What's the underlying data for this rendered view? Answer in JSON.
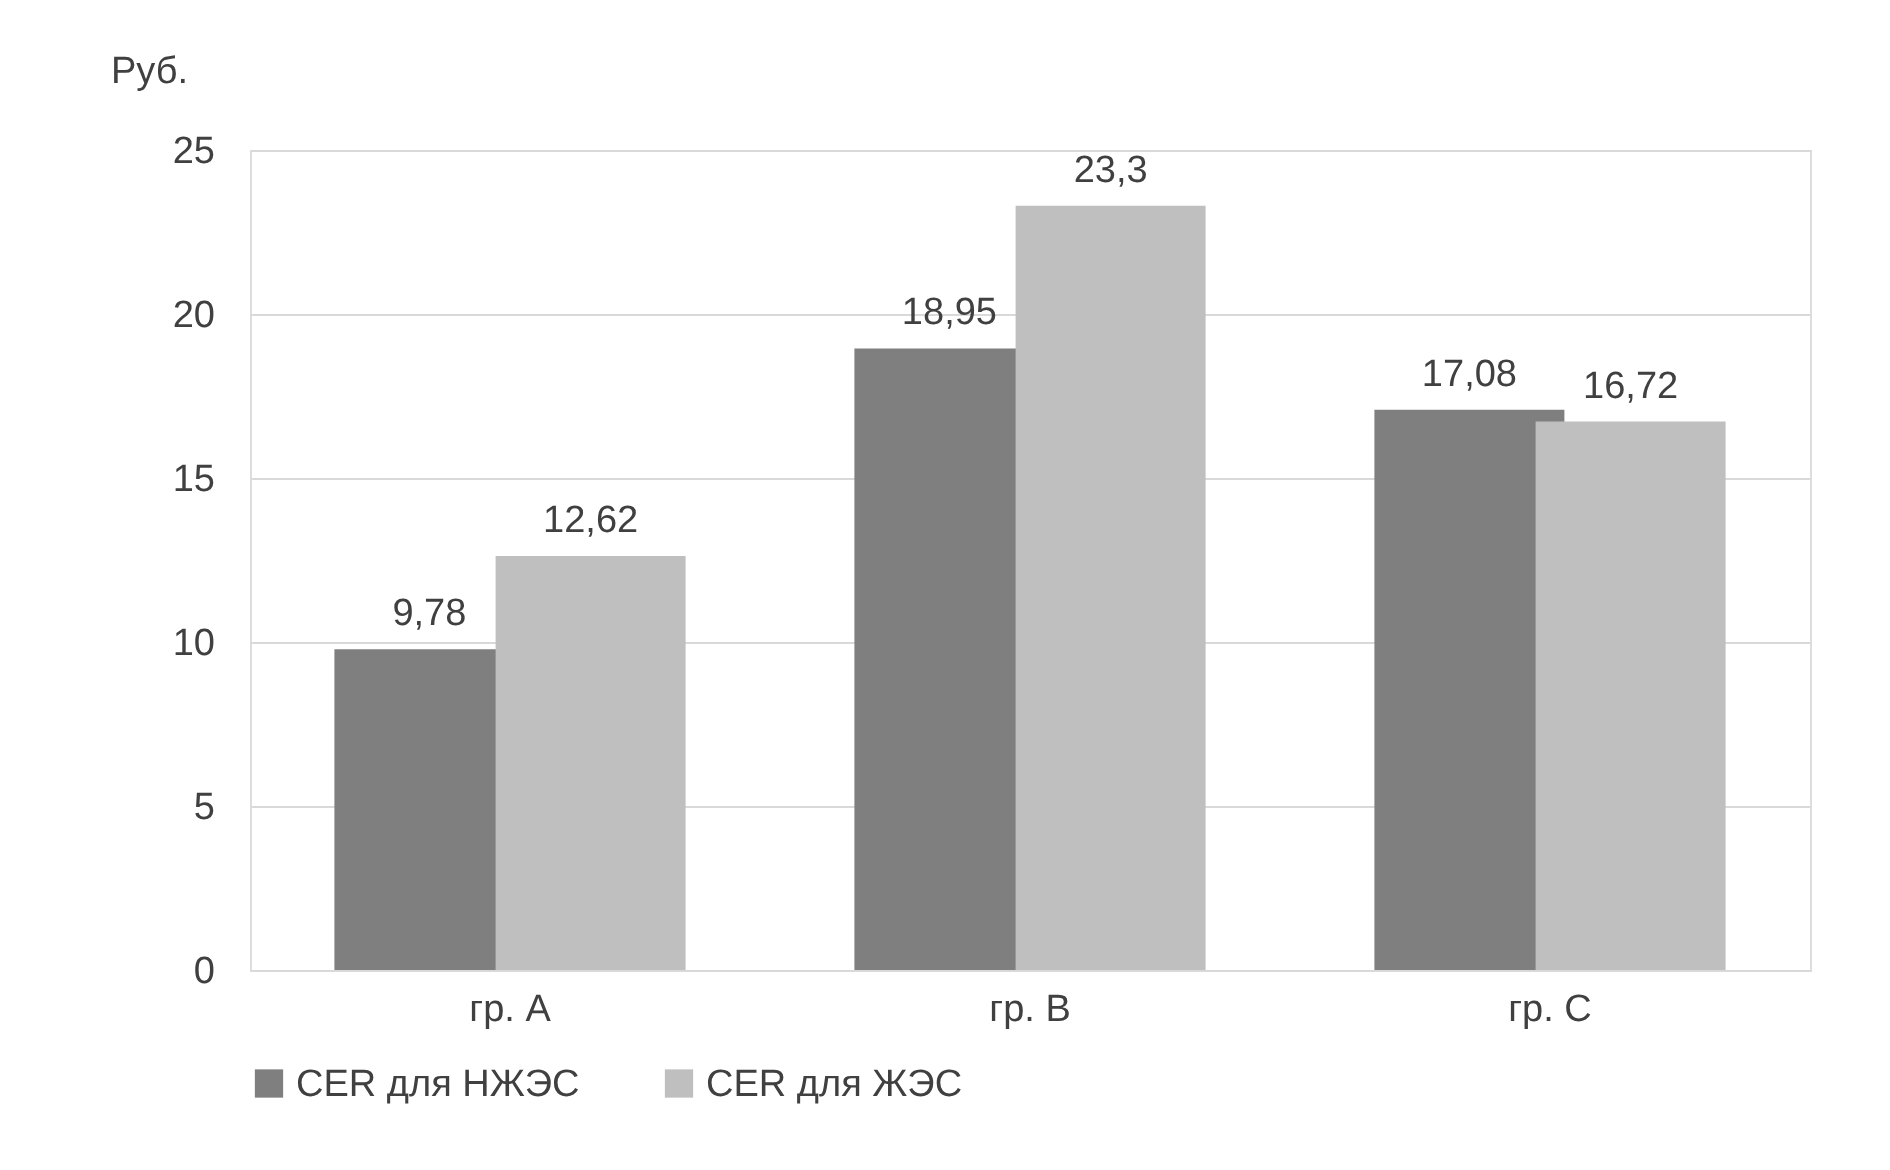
{
  "chart_data": {
    "type": "bar",
    "ylabel": "Руб.",
    "categories": [
      "гр. A",
      "гр. B",
      "гр. C"
    ],
    "series": [
      {
        "name": "CER для НЖЭС",
        "color": "#7f7f7f",
        "values": [
          9.78,
          18.95,
          17.08
        ],
        "value_labels": [
          "9,78",
          "18,95",
          "17,08"
        ]
      },
      {
        "name": "CER для ЖЭС",
        "color": "#bfbfbf",
        "values": [
          12.62,
          23.3,
          16.72
        ],
        "value_labels": [
          "12,62",
          "23,3",
          "16,72"
        ]
      }
    ],
    "ylim": [
      0,
      25
    ],
    "yticks": [
      0,
      5,
      10,
      15,
      20,
      25
    ],
    "grid": "y",
    "legend": "bottom"
  }
}
